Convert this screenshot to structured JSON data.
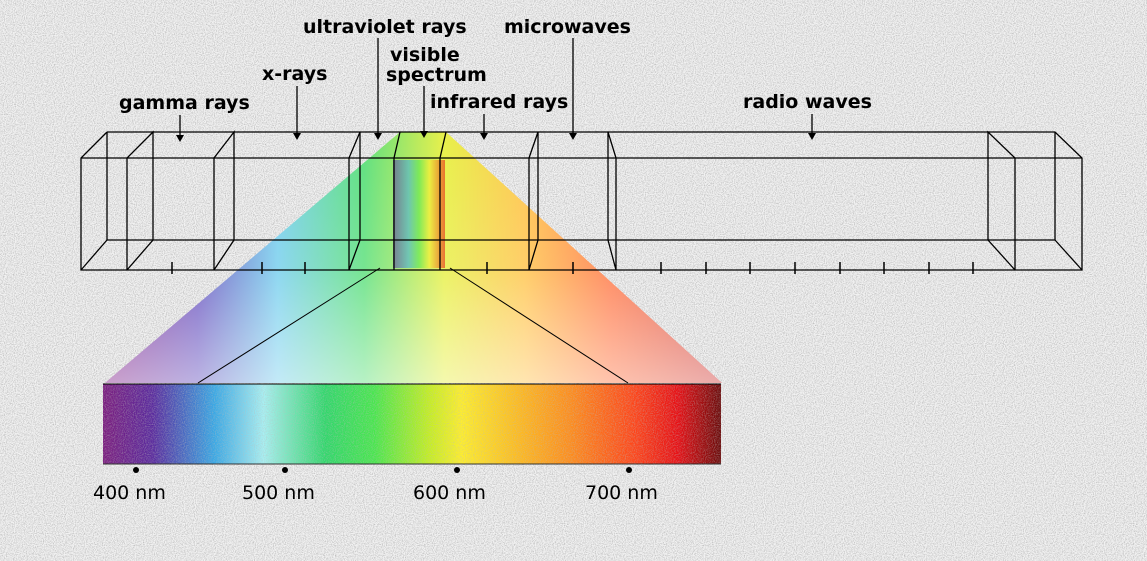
{
  "bands": [
    {
      "id": "gamma",
      "label": "gamma rays"
    },
    {
      "id": "xray",
      "label": "x-rays"
    },
    {
      "id": "uv",
      "label": "ultraviolet rays"
    },
    {
      "id": "visible1",
      "label": "visible"
    },
    {
      "id": "visible2",
      "label": "spectrum"
    },
    {
      "id": "ir",
      "label": "infrared rays"
    },
    {
      "id": "micro",
      "label": "microwaves"
    },
    {
      "id": "radio",
      "label": "radio waves"
    }
  ],
  "wavelength_ticks": [
    "400 nm",
    "500 nm",
    "600 nm",
    "700 nm"
  ],
  "colors": {
    "line": "#000000",
    "spectrum": [
      "#7b1d7f",
      "#5a2a9e",
      "#38a8e6",
      "#a8f0f2",
      "#2fd86a",
      "#48e84c",
      "#c8f020",
      "#ffef2a",
      "#ffc21e",
      "#ff8a1a",
      "#ff4418",
      "#e80d12",
      "#6a0a0a"
    ]
  }
}
